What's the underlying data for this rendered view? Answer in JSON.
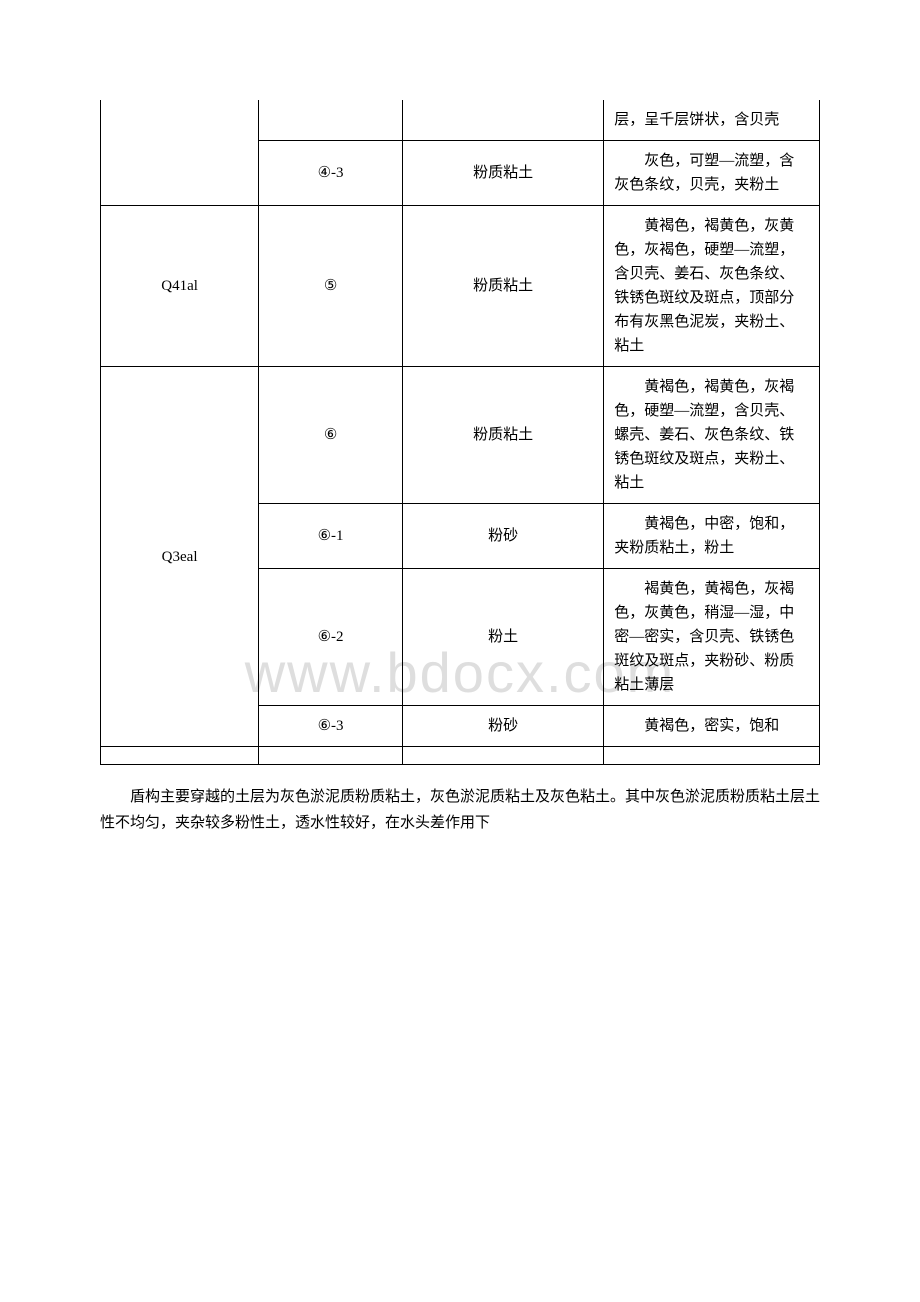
{
  "watermark": "www.bdocx.com",
  "table": {
    "rows": [
      {
        "col1": "",
        "col2": "",
        "col3": "",
        "col4": "层，呈千层饼状，含贝壳",
        "col1_rowspan": 1,
        "col2_rowspan": 1,
        "border_top_col1": false,
        "border_top_col2": false,
        "border_top_col3": false,
        "border_top_col4": false
      },
      {
        "col1": null,
        "col2": "④-3",
        "col3": "粉质粘土",
        "col4": "灰色，可塑—流塑，含灰色条纹，贝壳，夹粉土"
      },
      {
        "col1": "Q41al",
        "col2": "⑤",
        "col3": "粉质粘土",
        "col4": "黄褐色，褐黄色，灰黄色，灰褐色，硬塑—流塑，含贝壳、姜石、灰色条纹、铁锈色斑纹及斑点，顶部分布有灰黑色泥炭，夹粉土、粘土"
      },
      {
        "col1": "Q3eal",
        "col1_rowspan": 4,
        "col2": "⑥",
        "col3": "粉质粘土",
        "col4": "黄褐色，褐黄色，灰褐色，硬塑—流塑，含贝壳、螺壳、姜石、灰色条纹、铁锈色斑纹及斑点，夹粉土、粘土"
      },
      {
        "col1": null,
        "col2": "⑥-1",
        "col3": "粉砂",
        "col4": "黄褐色，中密，饱和，夹粉质粘土，粉土"
      },
      {
        "col1": null,
        "col2": "⑥-2",
        "col3": "粉土",
        "col4": "褐黄色，黄褐色，灰褐色，灰黄色，稍湿—湿，中密—密实，含贝壳、铁锈色斑纹及斑点，夹粉砂、粉质粘土薄层"
      },
      {
        "col1": null,
        "col2": "⑥-3",
        "col3": "粉砂",
        "col4": "黄褐色，密实，饱和"
      }
    ]
  },
  "paragraph": "盾构主要穿越的土层为灰色淤泥质粉质粘土，灰色淤泥质粘土及灰色粘土。其中灰色淤泥质粉质粘土层土性不均匀，夹杂较多粉性土，透水性较好，在水头差作用下"
}
